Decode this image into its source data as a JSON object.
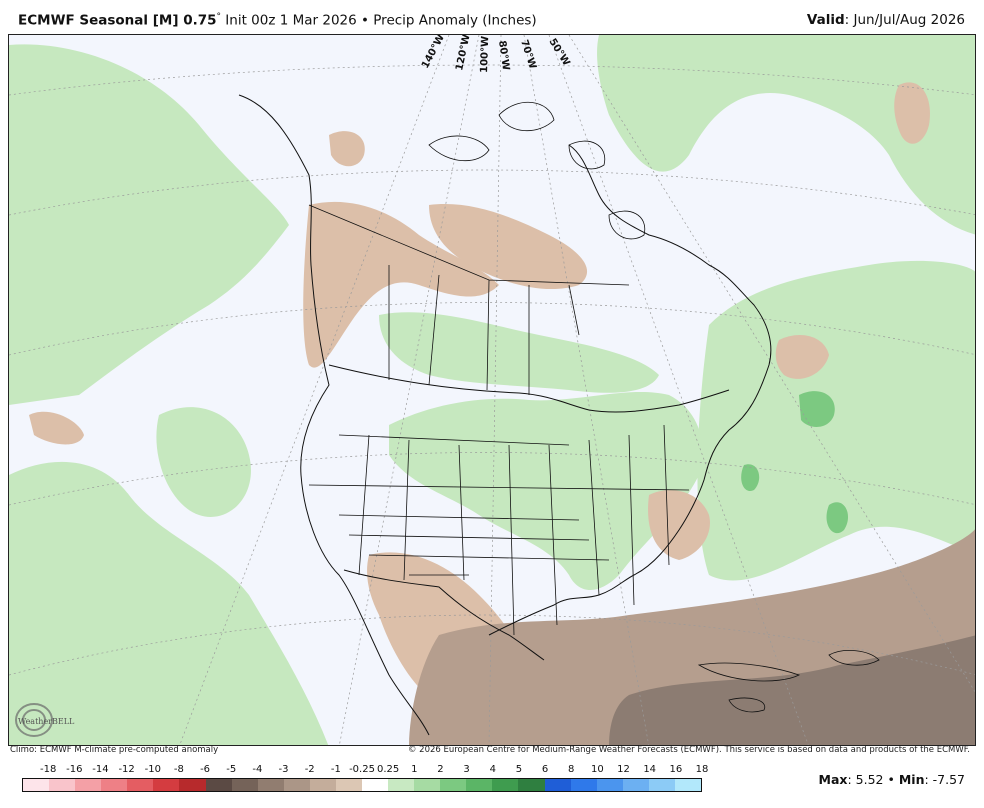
{
  "header": {
    "model": "ECMWF Seasonal [M] 0.75",
    "degree": "°",
    "init": " Init 00z 1 Mar 2026",
    "bullet": " • ",
    "product": "Precip Anomaly (Inches)",
    "valid_label": "Valid",
    "valid_value": ": Jun/Jul/Aug 2026"
  },
  "map": {
    "longitude_labels": [
      "140°W",
      "120°W",
      "100°W",
      "80°W",
      "70°W",
      "50°W"
    ],
    "colors": {
      "ocean": "#f3f6fd",
      "wet_light": "#c6e8bf",
      "wet_mid": "#7cc981",
      "dry_light": "#dcbfa9",
      "dry_mid": "#b59e8e",
      "dry_dark": "#8c7c72",
      "border": "#111111"
    }
  },
  "logo": {
    "text": "WeatherBELL"
  },
  "footer": {
    "left": "Climo: ECMWF M-climate pre-computed anomaly",
    "right": "© 2026 European Centre for Medium-Range Weather Forecasts (ECMWF). This service is based on data and products of the ECMWF."
  },
  "colorbar": {
    "ticks": [
      "-18",
      "-16",
      "-14",
      "-12",
      "-10",
      "-8",
      "-6",
      "-5",
      "-4",
      "-3",
      "-2",
      "-1",
      "-0.25",
      "0.25",
      "1",
      "2",
      "3",
      "4",
      "5",
      "6",
      "8",
      "10",
      "12",
      "14",
      "16",
      "18"
    ],
    "colors": [
      "#fde4ea",
      "#f9c4cb",
      "#f4a0a6",
      "#ee8086",
      "#e45d62",
      "#d43c40",
      "#b72a2c",
      "#5b4a44",
      "#756359",
      "#917d70",
      "#ab9687",
      "#c4ad9b",
      "#dcc7b4",
      "#ffffff",
      "#c8e9c2",
      "#a6dba3",
      "#7cc981",
      "#5bb566",
      "#3f9c4f",
      "#2f7f40",
      "#1f5ed7",
      "#2f79ea",
      "#4b95ee",
      "#6cb0f2",
      "#8ccbf6",
      "#b2e8fb"
    ]
  },
  "stats": {
    "max_label": "Max",
    "max_value": ": 5.52",
    "sep": " • ",
    "min_label": "Min",
    "min_value": ": -7.57"
  }
}
